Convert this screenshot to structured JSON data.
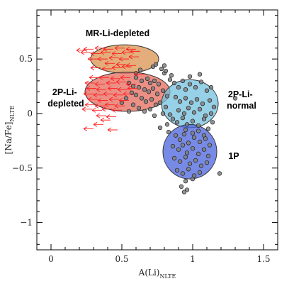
{
  "chart_data": {
    "type": "scatter",
    "title": "",
    "xlabel": "A(Li)",
    "xlabel_sub": "NLTE",
    "ylabel": "[Na/Fe]",
    "ylabel_sub": "NLTE",
    "xlim": [
      -0.1,
      1.6
    ],
    "ylim": [
      -1.25,
      0.95
    ],
    "xticks": [
      0,
      0.5,
      1,
      1.5
    ],
    "xtick_labels": [
      "0",
      "0.5",
      "1",
      "1.5"
    ],
    "yticks": [
      -1,
      -0.5,
      0,
      0.5
    ],
    "ytick_labels": [
      "−1",
      "−0.5",
      "0",
      "0.5"
    ],
    "grid": false,
    "regions": [
      {
        "label": "MR-Li-depleted",
        "cx": 0.52,
        "cy": 0.5,
        "rx": 0.24,
        "ry": 0.13,
        "color": "#d9934f"
      },
      {
        "label": "2P-Li-depleted",
        "cx": 0.54,
        "cy": 0.2,
        "rx": 0.3,
        "ry": 0.18,
        "color": "#e66a5c"
      },
      {
        "label": "2P-Li-normal",
        "cx": 0.98,
        "cy": 0.09,
        "rx": 0.2,
        "ry": 0.22,
        "color": "#74c1df"
      },
      {
        "label": "1P",
        "cx": 0.98,
        "cy": -0.35,
        "rx": 0.19,
        "ry": 0.25,
        "color": "#4a63dd"
      }
    ],
    "region_label_lines": {
      "mr": [
        "MR-Li-depleted"
      ],
      "twoP_dep": [
        "2P-Li-",
        "depleted"
      ],
      "twoP_norm": [
        "2P-Li-",
        "normal"
      ],
      "oneP": [
        "1P"
      ]
    },
    "series": [
      {
        "marker": "circle",
        "color": "#808080",
        "points": [
          [
            0.63,
            0.4
          ],
          [
            0.72,
            0.43
          ],
          [
            0.78,
            0.41
          ],
          [
            0.8,
            0.37
          ],
          [
            0.81,
            0.39
          ],
          [
            0.85,
            0.35
          ],
          [
            0.6,
            0.33
          ],
          [
            0.64,
            0.3
          ],
          [
            0.68,
            0.32
          ],
          [
            0.7,
            0.28
          ],
          [
            0.73,
            0.3
          ],
          [
            0.76,
            0.27
          ],
          [
            0.55,
            0.28
          ],
          [
            0.58,
            0.25
          ],
          [
            0.62,
            0.24
          ],
          [
            0.66,
            0.22
          ],
          [
            0.69,
            0.2
          ],
          [
            0.72,
            0.23
          ],
          [
            0.75,
            0.18
          ],
          [
            0.79,
            0.21
          ],
          [
            0.82,
            0.16
          ],
          [
            0.6,
            0.17
          ],
          [
            0.64,
            0.14
          ],
          [
            0.67,
            0.11
          ],
          [
            0.71,
            0.13
          ],
          [
            0.74,
            0.08
          ],
          [
            0.58,
            0.08
          ],
          [
            0.62,
            0.05
          ],
          [
            0.66,
            0.02
          ],
          [
            0.7,
            0.04
          ],
          [
            0.77,
            0.1
          ],
          [
            0.81,
            0.06
          ],
          [
            0.84,
            -0.01
          ],
          [
            0.79,
            0.0
          ],
          [
            0.73,
            -0.02
          ],
          [
            0.53,
            0.14
          ],
          [
            0.5,
            0.1
          ],
          [
            0.55,
            0.02
          ],
          [
            0.87,
            0.28
          ],
          [
            0.9,
            0.24
          ],
          [
            0.93,
            0.3
          ],
          [
            0.95,
            0.22
          ],
          [
            0.98,
            0.27
          ],
          [
            1.02,
            0.24
          ],
          [
            1.06,
            0.29
          ],
          [
            1.1,
            0.21
          ],
          [
            1.13,
            0.24
          ],
          [
            0.88,
            0.15
          ],
          [
            0.91,
            0.11
          ],
          [
            0.95,
            0.14
          ],
          [
            0.99,
            0.1
          ],
          [
            1.03,
            0.13
          ],
          [
            1.07,
            0.09
          ],
          [
            1.12,
            0.12
          ],
          [
            1.15,
            0.06
          ],
          [
            0.9,
            0.03
          ],
          [
            0.94,
            0.0
          ],
          [
            0.97,
            0.05
          ],
          [
            1.01,
            0.01
          ],
          [
            1.05,
            0.04
          ],
          [
            1.09,
            -0.02
          ],
          [
            1.13,
            0.0
          ],
          [
            0.86,
            -0.05
          ],
          [
            0.89,
            -0.08
          ],
          [
            0.93,
            -0.04
          ],
          [
            0.96,
            -0.1
          ],
          [
            1.0,
            -0.07
          ],
          [
            1.04,
            -0.11
          ],
          [
            1.08,
            -0.05
          ],
          [
            0.82,
            -0.1
          ],
          [
            0.98,
            0.34
          ],
          [
            1.05,
            0.36
          ],
          [
            0.95,
            -0.15
          ],
          [
            1.0,
            -0.18
          ],
          [
            1.04,
            -0.16
          ],
          [
            1.08,
            -0.2
          ],
          [
            1.11,
            -0.14
          ],
          [
            0.88,
            -0.2
          ],
          [
            0.91,
            -0.24
          ],
          [
            0.94,
            -0.19
          ],
          [
            0.97,
            -0.27
          ],
          [
            1.01,
            -0.22
          ],
          [
            1.05,
            -0.26
          ],
          [
            1.09,
            -0.23
          ],
          [
            1.12,
            -0.29
          ],
          [
            0.86,
            -0.3
          ],
          [
            0.9,
            -0.33
          ],
          [
            0.93,
            -0.29
          ],
          [
            0.96,
            -0.36
          ],
          [
            1.0,
            -0.32
          ],
          [
            1.04,
            -0.37
          ],
          [
            1.08,
            -0.33
          ],
          [
            1.11,
            -0.39
          ],
          [
            0.87,
            -0.41
          ],
          [
            0.91,
            -0.44
          ],
          [
            0.95,
            -0.4
          ],
          [
            0.98,
            -0.46
          ],
          [
            1.02,
            -0.43
          ],
          [
            1.06,
            -0.48
          ],
          [
            1.1,
            -0.45
          ],
          [
            0.89,
            -0.52
          ],
          [
            0.93,
            -0.55
          ],
          [
            0.97,
            -0.51
          ],
          [
            1.01,
            -0.57
          ],
          [
            1.05,
            -0.54
          ],
          [
            0.95,
            -0.62
          ],
          [
            1.0,
            -0.6
          ],
          [
            0.92,
            -0.67
          ],
          [
            0.96,
            -0.7
          ],
          [
            0.94,
            -0.72
          ],
          [
            1.19,
            -0.55
          ],
          [
            1.3,
            0.14
          ],
          [
            0.77,
            -0.13
          ],
          [
            0.83,
            -0.17
          ],
          [
            0.74,
            0.45
          ],
          [
            0.8,
            0.44
          ],
          [
            0.6,
            0.37
          ],
          [
            0.57,
            0.19
          ],
          [
            1.14,
            -0.08
          ],
          [
            0.84,
            0.31
          ]
        ]
      },
      {
        "marker": "left-arrow",
        "color": "#ff2020",
        "points": [
          [
            0.25,
            0.58
          ],
          [
            0.3,
            0.59
          ],
          [
            0.38,
            0.6
          ],
          [
            0.44,
            0.59
          ],
          [
            0.52,
            0.6
          ],
          [
            0.6,
            0.59
          ],
          [
            0.28,
            0.56
          ],
          [
            0.35,
            0.55
          ],
          [
            0.42,
            0.56
          ],
          [
            0.5,
            0.55
          ],
          [
            0.57,
            0.56
          ],
          [
            0.63,
            0.57
          ],
          [
            0.33,
            0.5
          ],
          [
            0.4,
            0.5
          ],
          [
            0.48,
            0.51
          ],
          [
            0.55,
            0.5
          ],
          [
            0.62,
            0.52
          ],
          [
            0.45,
            0.46
          ],
          [
            0.53,
            0.45
          ],
          [
            0.6,
            0.44
          ],
          [
            0.35,
            0.42
          ],
          [
            0.43,
            0.41
          ],
          [
            0.5,
            0.42
          ],
          [
            0.57,
            0.43
          ],
          [
            0.34,
            0.33
          ],
          [
            0.41,
            0.33
          ],
          [
            0.49,
            0.32
          ],
          [
            0.56,
            0.33
          ],
          [
            0.31,
            0.28
          ],
          [
            0.38,
            0.27
          ],
          [
            0.46,
            0.28
          ],
          [
            0.53,
            0.29
          ],
          [
            0.6,
            0.27
          ],
          [
            0.32,
            0.23
          ],
          [
            0.39,
            0.22
          ],
          [
            0.47,
            0.23
          ],
          [
            0.54,
            0.22
          ],
          [
            0.61,
            0.23
          ],
          [
            0.3,
            0.18
          ],
          [
            0.37,
            0.17
          ],
          [
            0.44,
            0.18
          ],
          [
            0.51,
            0.17
          ],
          [
            0.58,
            0.18
          ],
          [
            0.33,
            0.13
          ],
          [
            0.4,
            0.12
          ],
          [
            0.48,
            0.13
          ],
          [
            0.55,
            0.12
          ],
          [
            0.31,
            0.08
          ],
          [
            0.38,
            0.07
          ],
          [
            0.45,
            0.08
          ],
          [
            0.52,
            0.07
          ],
          [
            0.29,
            0.04
          ],
          [
            0.36,
            0.03
          ],
          [
            0.43,
            0.04
          ],
          [
            0.5,
            0.03
          ],
          [
            0.39,
            -0.02
          ],
          [
            0.46,
            -0.03
          ],
          [
            0.42,
            -0.06
          ],
          [
            0.37,
            -0.1
          ],
          [
            0.3,
            -0.14
          ],
          [
            0.47,
            -0.15
          ],
          [
            0.66,
            0.36
          ]
        ]
      }
    ]
  }
}
